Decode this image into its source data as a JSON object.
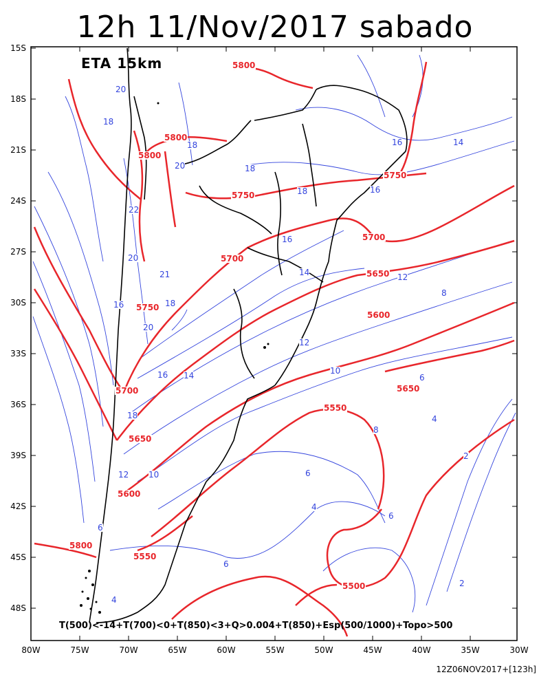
{
  "title": "12h 11/Nov/2017 sabado",
  "model_label": "ETA 15km",
  "legend": "T(500)<-14+T(700)<0+T(850)<3+Q>0.004+T(850)+Esp(500/1000)+Topo>500",
  "run_time": "12Z06NOV2017+[123h]",
  "lat_labels": [
    "15S",
    "18S",
    "21S",
    "24S",
    "27S",
    "30S",
    "33S",
    "36S",
    "39S",
    "42S",
    "45S",
    "48S"
  ],
  "lon_labels": [
    "80W",
    "75W",
    "70W",
    "65W",
    "60W",
    "55W",
    "50W",
    "45W",
    "40W",
    "35W",
    "30W"
  ],
  "thickness_contour_labels": [
    "5800",
    "5800",
    "5800",
    "5750",
    "5750",
    "5750",
    "5700",
    "5700",
    "5700",
    "5650",
    "5650",
    "5650",
    "5600",
    "5600",
    "5600",
    "5550",
    "5550",
    "5500",
    "5500",
    "5800"
  ],
  "temperature_contour_labels": [
    "20",
    "18",
    "18",
    "20",
    "22",
    "20",
    "21",
    "18",
    "16",
    "20",
    "18",
    "18",
    "16",
    "14",
    "16",
    "14",
    "12",
    "12",
    "10",
    "8",
    "6",
    "4",
    "2",
    "6",
    "6",
    "4",
    "2",
    "18",
    "16",
    "14",
    "12",
    "10",
    "8",
    "6",
    "4",
    "6"
  ],
  "colors": {
    "thickness": "#e8262b",
    "temperature": "#3344dd",
    "coastline": "#000000",
    "frame": "#000000"
  }
}
